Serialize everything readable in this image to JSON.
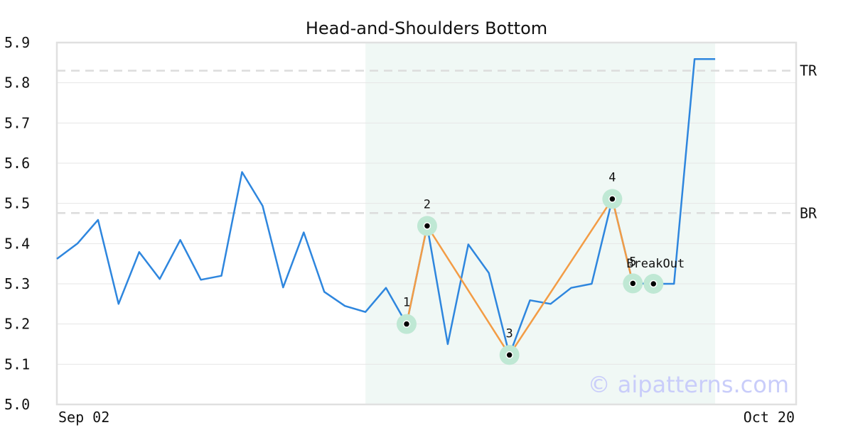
{
  "chart_data": {
    "type": "line",
    "title": "Head-and-Shoulders Bottom",
    "xlabel": "",
    "ylabel": "",
    "ylim": [
      5.0,
      5.9
    ],
    "yticks": [
      "5.0",
      "5.1",
      "5.2",
      "5.3",
      "5.4",
      "5.5",
      "5.6",
      "5.7",
      "5.8",
      "5.9"
    ],
    "xtick_labels": [
      {
        "index": 0,
        "label": "Sep 02"
      },
      {
        "index": 36,
        "label": "Oct 20"
      }
    ],
    "grid": true,
    "series": [
      {
        "color": "#2e86de",
        "values": [
          5.362,
          5.4,
          5.459,
          5.25,
          5.379,
          5.312,
          5.409,
          5.31,
          5.32,
          5.578,
          5.494,
          5.291,
          5.428,
          5.28,
          5.245,
          5.23,
          5.29,
          5.2,
          5.444,
          5.15,
          5.398,
          5.327,
          5.123,
          5.259,
          5.25,
          5.29,
          5.3,
          5.511,
          5.301,
          5.3,
          5.3,
          5.859,
          5.859
        ]
      }
    ],
    "highlight_region": {
      "start_index": 15,
      "end_index": 32,
      "color": "#e6f4ee"
    },
    "reference_lines": [
      {
        "label": "TR",
        "value": 5.83
      },
      {
        "label": "BR",
        "value": 5.476
      }
    ],
    "pattern_points": [
      {
        "label": "1",
        "index": 17,
        "value": 5.2
      },
      {
        "label": "2",
        "index": 18,
        "value": 5.444
      },
      {
        "label": "3",
        "index": 22,
        "value": 5.123
      },
      {
        "label": "4",
        "index": 27,
        "value": 5.511
      },
      {
        "label": "5",
        "index": 28,
        "value": 5.301
      },
      {
        "label": "BreakOut",
        "index": 29,
        "value": 5.3
      }
    ],
    "pattern_color": "#f39c45",
    "marker_color": "#bfe8d4",
    "watermark": "© aipatterns.com"
  }
}
